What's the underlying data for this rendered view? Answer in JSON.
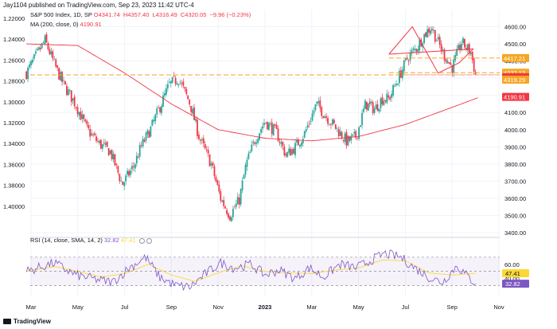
{
  "header": {
    "publisher": "Jay1104 published on TradingView.com, Sep 23, 2023 11:42 UTC-4",
    "symbol": "S&P 500 Index, 1D, SP",
    "ohlc": [
      "O4341.74",
      "H4357.40",
      "L4316.49",
      "C4320.05",
      "−9.96 (−0.23%)"
    ],
    "ma_label": "MA (200, close, 0)",
    "ma_value": "4190.91",
    "rsi_label": "RSI (14, close, SMA, 14, 2)",
    "rsi_value": "32.82",
    "rsi_ma_value": "47.41"
  },
  "footer": {
    "brand": "TradingView"
  },
  "colors": {
    "up": "#26a69a",
    "down": "#f23645",
    "ma": "#f23645",
    "rsi": "#7e57c2",
    "rsi_ma": "#fdd835",
    "level": "#f5a623",
    "grid": "#f0f3fa"
  },
  "chart_data": [
    {
      "type": "candlestick",
      "title": "S&P 500 Index, 1D, SP",
      "right_axis": {
        "ylim": [
          3400,
          4700
        ],
        "ticks": [
          "4600.00",
          "4500.00",
          "4400.00",
          "4300.00",
          "4200.00",
          "4100.00",
          "4000.00",
          "3900.00",
          "3800.00",
          "3700.00",
          "3600.00",
          "3500.00",
          "3400.00"
        ]
      },
      "left_axis": {
        "ticks": [
          "1.22000",
          "1.24000",
          "1.26000",
          "1.28000",
          "1.30000",
          "1.32000",
          "1.34000",
          "1.36000",
          "1.38000",
          "1.40000"
        ]
      },
      "x_ticks": [
        "Mar",
        "May",
        "Jul",
        "Sep",
        "Nov",
        "2023",
        "Mar",
        "May",
        "Jul",
        "Sep",
        "Nov"
      ],
      "x_tick_months": [
        0,
        2,
        4,
        6,
        8,
        10,
        12,
        14,
        16,
        18,
        20
      ],
      "path_month": [
        -0.2,
        0.3,
        0.6,
        1.0,
        1.4,
        1.9,
        2.4,
        2.9,
        3.4,
        3.9,
        4.4,
        4.7,
        5.1,
        5.5,
        5.9,
        6.3,
        6.8,
        7.2,
        7.7,
        8.1,
        8.5,
        8.9,
        9.2,
        9.6,
        10.0,
        10.5,
        10.9,
        11.3,
        11.7,
        12.2,
        12.6,
        13.1,
        13.5,
        13.9,
        14.3,
        14.7,
        15.0,
        15.3,
        15.7,
        16.1,
        16.5,
        16.8,
        17.1,
        17.6,
        18.0,
        18.4,
        18.8,
        19.0
      ],
      "path_close": [
        4330,
        4450,
        4520,
        4380,
        4260,
        4150,
        4000,
        3920,
        3870,
        3680,
        3790,
        3900,
        4000,
        4130,
        4260,
        4300,
        4150,
        3950,
        3800,
        3600,
        3500,
        3590,
        3800,
        3950,
        4050,
        3980,
        3850,
        3900,
        3980,
        4150,
        4080,
        4000,
        3930,
        3960,
        4150,
        4120,
        4180,
        4180,
        4300,
        4420,
        4480,
        4550,
        4600,
        4450,
        4360,
        4510,
        4450,
        4320
      ],
      "ma200": {
        "label": "MA (200, close, 0)",
        "months": [
          -0.2,
          2,
          4,
          6,
          8,
          10,
          12,
          14,
          16,
          18,
          19.2
        ],
        "values": [
          4500,
          4490,
          4330,
          4150,
          4000,
          3950,
          3935,
          3960,
          4030,
          4130,
          4191
        ]
      },
      "levels": [
        {
          "label": "4417.21",
          "value": 4417.21
        },
        {
          "label": "4332.13",
          "value": 4332.13
        },
        {
          "label": "4320.05",
          "value": 4320.05
        },
        {
          "label": "4319.29",
          "value": 4319.29
        },
        {
          "label": "4190.91",
          "value": 4190.91
        }
      ],
      "pattern": "diamond (broadening wedge) top, Jun–Sep 2023",
      "diamond": {
        "months": [
          15.3,
          16.3,
          17.4,
          18.3,
          18.9,
          15.3
        ],
        "values": [
          4440,
          4600,
          4330,
          4390,
          4470,
          4440
        ]
      }
    },
    {
      "type": "line",
      "title": "RSI (14, close, SMA, 14, 2)",
      "ylim": [
        15,
        90
      ],
      "y_ticks": [
        "60.00",
        "40.00"
      ],
      "bands": [
        70,
        30
      ],
      "series": [
        {
          "name": "RSI",
          "months": [
            -0.2,
            1.0,
            1.9,
            2.9,
            3.5,
            4.2,
            4.9,
            5.5,
            6.2,
            6.8,
            7.4,
            8.1,
            8.7,
            9.4,
            10.0,
            10.6,
            11.3,
            11.9,
            12.5,
            13.2,
            13.9,
            14.5,
            15.1,
            15.8,
            16.4,
            17.1,
            17.6,
            18.2,
            18.6,
            19.0
          ],
          "values": [
            50,
            62,
            45,
            38,
            35,
            55,
            70,
            42,
            30,
            28,
            45,
            62,
            55,
            60,
            45,
            52,
            40,
            55,
            42,
            60,
            55,
            65,
            75,
            70,
            55,
            40,
            35,
            58,
            45,
            32.82
          ]
        },
        {
          "name": "RSI-based MA",
          "months": [
            -0.2,
            1.0,
            2.0,
            3.0,
            4.0,
            5.0,
            6.0,
            7.0,
            8.0,
            9.0,
            10.0,
            11.0,
            12.0,
            13.0,
            14.0,
            15.0,
            16.0,
            17.0,
            18.0,
            19.0
          ],
          "values": [
            50,
            57,
            50,
            42,
            47,
            60,
            45,
            36,
            48,
            58,
            50,
            48,
            47,
            52,
            55,
            66,
            65,
            48,
            45,
            47.41
          ]
        }
      ]
    }
  ]
}
